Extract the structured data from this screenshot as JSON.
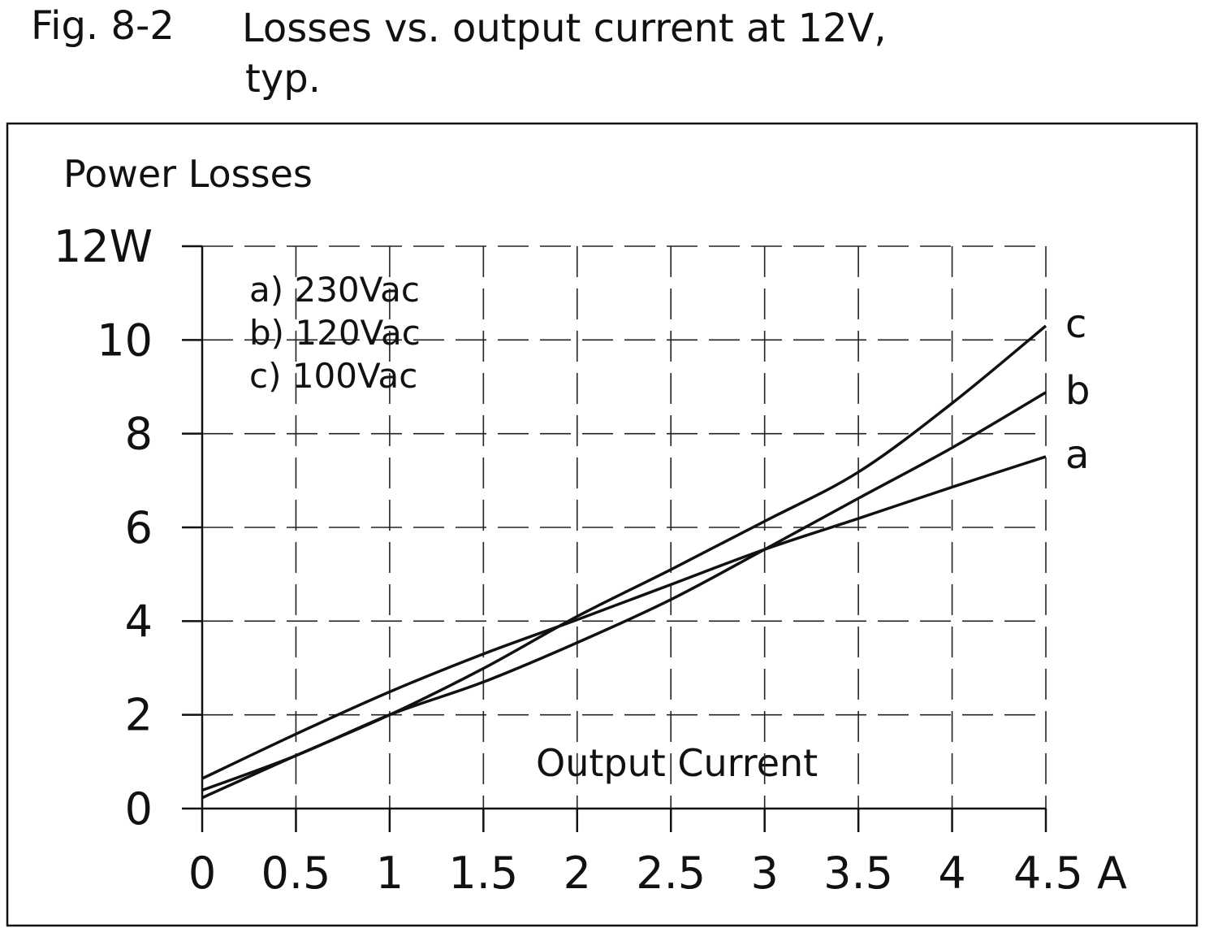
{
  "figure": {
    "number": "Fig. 8-2",
    "title_line1": "Losses vs. output current at 12V,",
    "title_line2": "typ."
  },
  "chart_data": {
    "type": "line",
    "ylabel": "Power Losses",
    "xlabel": "Output Current",
    "x": [
      0,
      0.5,
      1,
      1.5,
      2,
      2.5,
      3,
      3.5,
      4,
      4.5
    ],
    "xlim": [
      0,
      4.5
    ],
    "ylim": [
      0,
      12
    ],
    "x_ticks": [
      0,
      0.5,
      1,
      1.5,
      2,
      2.5,
      3,
      3.5,
      4,
      4.5
    ],
    "x_tick_labels": [
      "0",
      "0.5",
      "1",
      "1.5",
      "2",
      "2.5",
      "3",
      "3.5",
      "4",
      "4.5 A"
    ],
    "y_ticks": [
      0,
      2,
      4,
      6,
      8,
      10,
      12
    ],
    "y_tick_labels": [
      "0",
      "2",
      "4",
      "6",
      "8",
      "10",
      "12W"
    ],
    "grid": true,
    "grid_style": "dashed",
    "legend_placement": "top-left",
    "legend": [
      "a) 230Vac",
      "b) 120Vac",
      "c) 100Vac"
    ],
    "series": [
      {
        "name": "a",
        "values": [
          0.64,
          1.59,
          2.49,
          3.3,
          4.03,
          4.78,
          5.53,
          6.19,
          6.86,
          7.51
        ]
      },
      {
        "name": "b",
        "values": [
          0.39,
          1.13,
          2.0,
          2.7,
          3.54,
          4.46,
          5.53,
          6.62,
          7.7,
          8.88
        ]
      },
      {
        "name": "c",
        "values": [
          0.23,
          1.13,
          2.0,
          2.99,
          4.1,
          5.1,
          6.13,
          7.18,
          8.65,
          10.3
        ]
      }
    ],
    "line_color": "#111111"
  }
}
